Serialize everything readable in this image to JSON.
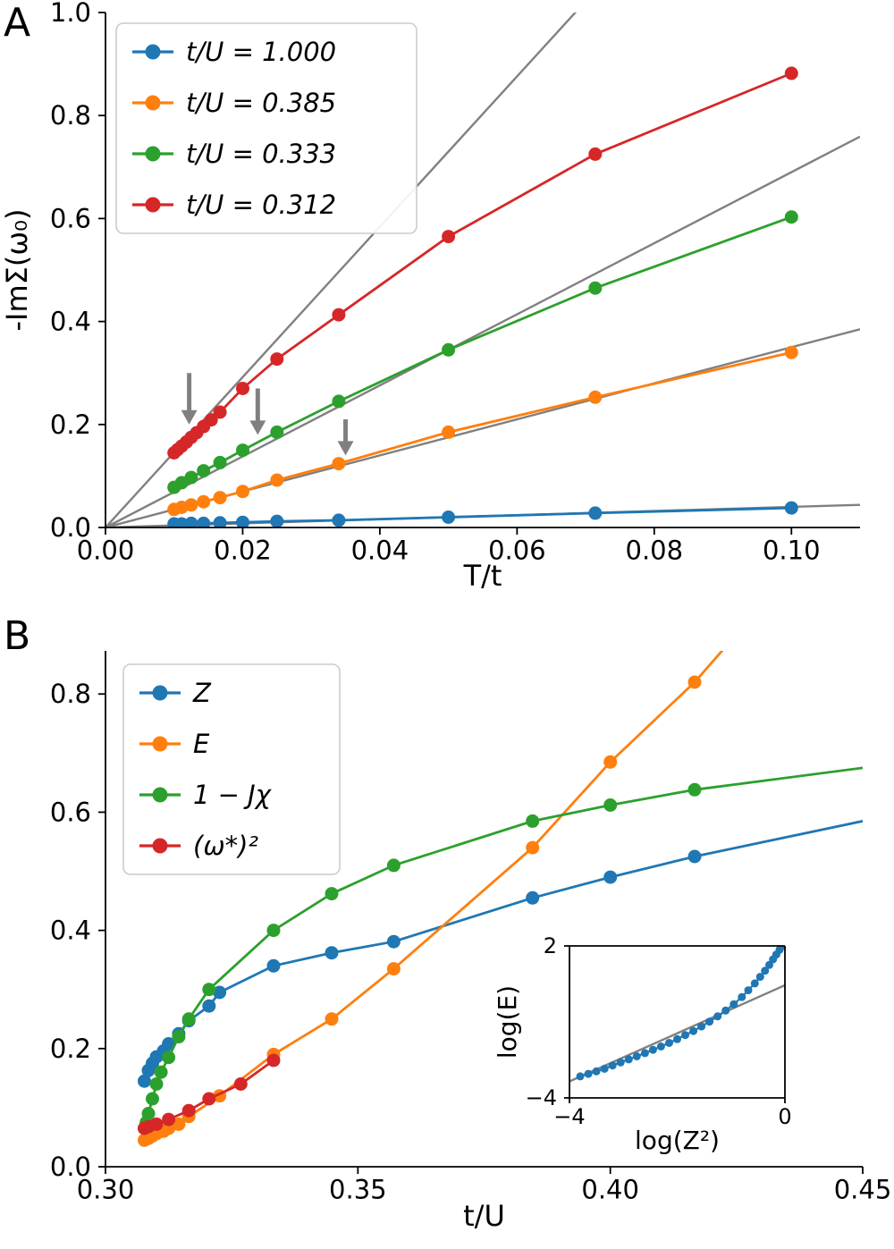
{
  "figure": {
    "panels": [
      {
        "label": "A"
      },
      {
        "label": "B"
      }
    ]
  },
  "colors": {
    "blue": "#1f77b4",
    "orange": "#ff7f0e",
    "green": "#2ca02c",
    "red": "#d62728",
    "gray": "#808080",
    "legend_border": "#cccccc",
    "text": "#000000"
  },
  "chart_data": [
    {
      "id": "panelA",
      "type": "line",
      "title": "",
      "xlabel": "T/t",
      "ylabel": "-ImΣ(ω₀)",
      "xlim": [
        0,
        0.11
      ],
      "ylim": [
        0,
        1.0
      ],
      "xticks": [
        0.0,
        0.02,
        0.04,
        0.06,
        0.08,
        0.1
      ],
      "xtick_labels": [
        "0.00",
        "0.02",
        "0.04",
        "0.06",
        "0.08",
        "0.10"
      ],
      "yticks": [
        0.0,
        0.2,
        0.4,
        0.6,
        0.8,
        1.0
      ],
      "ytick_labels": [
        "0.0",
        "0.2",
        "0.4",
        "0.6",
        "0.8",
        "1.0"
      ],
      "grid": false,
      "legend": {
        "position": "upper left",
        "entries": [
          {
            "color": "blue",
            "label": "t/U = 1.000"
          },
          {
            "color": "orange",
            "label": "t/U = 0.385"
          },
          {
            "color": "green",
            "label": "t/U = 0.333"
          },
          {
            "color": "red",
            "label": "t/U = 0.312"
          }
        ]
      },
      "fit_lines": [
        {
          "slope": 14.6
        },
        {
          "slope": 6.9
        },
        {
          "slope": 3.5
        },
        {
          "slope": 0.4
        }
      ],
      "arrows": [
        {
          "x": 0.0122,
          "y_from": 0.3,
          "y_to": 0.2
        },
        {
          "x": 0.0222,
          "y_from": 0.27,
          "y_to": 0.18
        },
        {
          "x": 0.035,
          "y_from": 0.21,
          "y_to": 0.14
        }
      ],
      "series": [
        {
          "name": "t/U = 1.000",
          "color": "blue",
          "x": [
            0.01,
            0.0111,
            0.0125,
            0.0143,
            0.0167,
            0.02,
            0.025,
            0.034,
            0.05,
            0.0714,
            0.1
          ],
          "y": [
            0.007,
            0.007,
            0.008,
            0.008,
            0.009,
            0.01,
            0.012,
            0.014,
            0.02,
            0.028,
            0.038
          ]
        },
        {
          "name": "t/U = 0.385",
          "color": "orange",
          "x": [
            0.01,
            0.0111,
            0.0125,
            0.0143,
            0.0167,
            0.02,
            0.025,
            0.034,
            0.05,
            0.0714,
            0.1
          ],
          "y": [
            0.035,
            0.039,
            0.044,
            0.05,
            0.058,
            0.07,
            0.092,
            0.124,
            0.185,
            0.253,
            0.34
          ]
        },
        {
          "name": "t/U = 0.333",
          "color": "green",
          "x": [
            0.01,
            0.0111,
            0.0125,
            0.0143,
            0.0167,
            0.02,
            0.025,
            0.034,
            0.05,
            0.0714,
            0.1
          ],
          "y": [
            0.078,
            0.087,
            0.097,
            0.11,
            0.126,
            0.15,
            0.185,
            0.245,
            0.345,
            0.465,
            0.603
          ]
        },
        {
          "name": "t/U = 0.312",
          "color": "red",
          "x": [
            0.01,
            0.0105,
            0.0111,
            0.0118,
            0.0125,
            0.0133,
            0.0143,
            0.0154,
            0.0167,
            0.02,
            0.025,
            0.034,
            0.05,
            0.0714,
            0.1
          ],
          "y": [
            0.145,
            0.151,
            0.158,
            0.166,
            0.175,
            0.184,
            0.196,
            0.209,
            0.224,
            0.27,
            0.327,
            0.413,
            0.565,
            0.725,
            0.882
          ]
        }
      ]
    },
    {
      "id": "panelB",
      "type": "line",
      "title": "",
      "xlabel": "t/U",
      "ylabel": "",
      "xlim": [
        0.3,
        0.45
      ],
      "ylim": [
        0,
        0.873
      ],
      "xticks": [
        0.3,
        0.35,
        0.4,
        0.45
      ],
      "xtick_labels": [
        "0.30",
        "0.35",
        "0.40",
        "0.45"
      ],
      "yticks": [
        0.0,
        0.2,
        0.4,
        0.6,
        0.8
      ],
      "ytick_labels": [
        "0.0",
        "0.2",
        "0.4",
        "0.6",
        "0.8"
      ],
      "grid": false,
      "legend": {
        "position": "upper left",
        "entries": [
          {
            "color": "blue",
            "label": "Z"
          },
          {
            "color": "orange",
            "label": "E"
          },
          {
            "color": "green",
            "label": "1 − Jχ"
          },
          {
            "color": "red",
            "label": "(ω*)²"
          }
        ]
      },
      "series": [
        {
          "name": "Z",
          "color": "blue",
          "x": [
            0.3077,
            0.3085,
            0.3093,
            0.3101,
            0.3115,
            0.3125,
            0.3145,
            0.3165,
            0.3205,
            0.3226,
            0.3333,
            0.3448,
            0.3571,
            0.3846,
            0.4,
            0.4167
          ],
          "y": [
            0.145,
            0.163,
            0.175,
            0.186,
            0.196,
            0.208,
            0.225,
            0.247,
            0.272,
            0.295,
            0.34,
            0.362,
            0.381,
            0.455,
            0.49,
            0.525
          ],
          "extend": [
            [
              0.45,
              0.585
            ]
          ]
        },
        {
          "name": "E",
          "color": "orange",
          "x": [
            0.3077,
            0.3085,
            0.3093,
            0.3101,
            0.3115,
            0.3125,
            0.3145,
            0.3165,
            0.3226,
            0.3333,
            0.3448,
            0.3571,
            0.3846,
            0.4,
            0.4167
          ],
          "y": [
            0.045,
            0.048,
            0.052,
            0.056,
            0.06,
            0.065,
            0.072,
            0.085,
            0.12,
            0.19,
            0.25,
            0.335,
            0.54,
            0.685,
            0.82
          ],
          "extend": [
            [
              0.43,
              0.95
            ]
          ]
        },
        {
          "name": "1 − Jχ",
          "color": "green",
          "x": [
            0.3077,
            0.3081,
            0.3085,
            0.3093,
            0.3101,
            0.311,
            0.3125,
            0.3145,
            0.3165,
            0.3205,
            0.3333,
            0.3448,
            0.3571,
            0.3846,
            0.4,
            0.4167
          ],
          "y": [
            0.065,
            0.075,
            0.09,
            0.115,
            0.14,
            0.16,
            0.185,
            0.22,
            0.25,
            0.3,
            0.4,
            0.462,
            0.51,
            0.585,
            0.612,
            0.638
          ],
          "extend": [
            [
              0.45,
              0.675
            ]
          ]
        },
        {
          "name": "(ω*)²",
          "color": "red",
          "x": [
            0.3077,
            0.3085,
            0.3101,
            0.3125,
            0.3165,
            0.3205,
            0.3268,
            0.3333
          ],
          "y": [
            0.065,
            0.068,
            0.072,
            0.08,
            0.095,
            0.115,
            0.14,
            0.18
          ]
        }
      ],
      "inset": {
        "id": "panelB-inset",
        "type": "line",
        "xlabel": "log(Z²)",
        "ylabel": "log(E)",
        "xlim": [
          -4,
          0
        ],
        "ylim": [
          -4,
          2
        ],
        "xticks": [
          -4,
          0
        ],
        "xtick_labels": [
          "−4",
          "0"
        ],
        "yticks": [
          -4,
          2
        ],
        "ytick_labels": [
          "−4",
          "2"
        ],
        "grid": false,
        "line": {
          "x1": -4,
          "y1": -3.35,
          "x2": 0,
          "y2": 0.45
        },
        "series": [
          {
            "name": "log(E) vs log(Z²)",
            "color": "blue",
            "x": [
              -3.8,
              -3.65,
              -3.5,
              -3.35,
              -3.2,
              -3.05,
              -2.9,
              -2.75,
              -2.6,
              -2.45,
              -2.3,
              -2.15,
              -2.0,
              -1.85,
              -1.7,
              -1.55,
              -1.4,
              -1.25,
              -1.1,
              -0.95,
              -0.8,
              -0.68,
              -0.56,
              -0.46,
              -0.37,
              -0.29,
              -0.22,
              -0.16,
              -0.1,
              -0.05
            ],
            "y": [
              -3.15,
              -3.05,
              -2.95,
              -2.85,
              -2.72,
              -2.6,
              -2.48,
              -2.36,
              -2.23,
              -2.1,
              -1.97,
              -1.83,
              -1.68,
              -1.52,
              -1.36,
              -1.18,
              -0.99,
              -0.78,
              -0.55,
              -0.3,
              -0.02,
              0.25,
              0.52,
              0.78,
              1.02,
              1.25,
              1.47,
              1.66,
              1.85,
              2.0
            ]
          }
        ]
      }
    }
  ]
}
